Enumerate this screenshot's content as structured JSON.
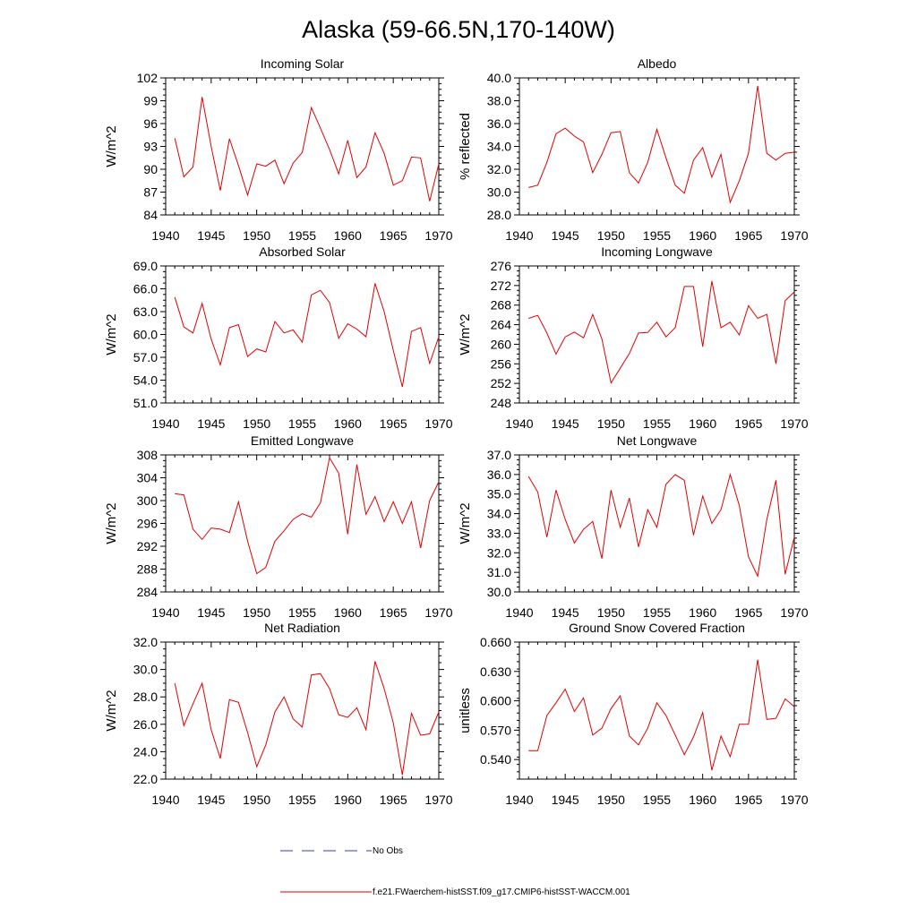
{
  "figure": {
    "title": "Alaska (59-66.5N,170-140W)",
    "legend": {
      "obs_label": "No Obs",
      "model_label": "f.e21.FWaerchem-histSST.f09_g17.CMIP6-histSST-WACCM.001",
      "obs_color": "#3b3bb0",
      "model_color": "#e00000"
    }
  },
  "chart_data": [
    {
      "type": "line",
      "title": "Incoming Solar",
      "ylabel": "W/m^2",
      "xlim": [
        1940,
        1970
      ],
      "ylim": [
        84,
        102
      ],
      "xticks": [
        1940,
        1945,
        1950,
        1955,
        1960,
        1965,
        1970
      ],
      "yticks": [
        "84",
        "87",
        "90",
        "93",
        "96",
        "99",
        "102"
      ],
      "x": [
        1941,
        1942,
        1943,
        1944,
        1945,
        1946,
        1947,
        1948,
        1949,
        1950,
        1951,
        1952,
        1953,
        1954,
        1955,
        1956,
        1957,
        1958,
        1959,
        1960,
        1961,
        1962,
        1963,
        1964,
        1965,
        1966,
        1967,
        1968,
        1969,
        1970
      ],
      "series": [
        {
          "name": "f.e21.FWaerchem-histSST.f09_g17.CMIP6-histSST-WACCM.001",
          "values": [
            94.1,
            89.0,
            90.3,
            99.5,
            93.0,
            87.2,
            94.0,
            90.5,
            86.6,
            90.7,
            90.4,
            91.2,
            88.1,
            90.8,
            92.2,
            98.1,
            95.4,
            92.6,
            89.4,
            93.8,
            88.9,
            90.3,
            94.8,
            92.1,
            87.9,
            88.5,
            91.6,
            91.5,
            85.8,
            90.7
          ]
        }
      ]
    },
    {
      "type": "line",
      "title": "Albedo",
      "ylabel": "% reflected",
      "xlim": [
        1940,
        1970
      ],
      "ylim": [
        28.0,
        40.0
      ],
      "xticks": [
        1940,
        1945,
        1950,
        1955,
        1960,
        1965,
        1970
      ],
      "yticks": [
        "28.0",
        "30.0",
        "32.0",
        "34.0",
        "36.0",
        "38.0",
        "40.0"
      ],
      "x": [
        1941,
        1942,
        1943,
        1944,
        1945,
        1946,
        1947,
        1948,
        1949,
        1950,
        1951,
        1952,
        1953,
        1954,
        1955,
        1956,
        1957,
        1958,
        1959,
        1960,
        1961,
        1962,
        1963,
        1964,
        1965,
        1966,
        1967,
        1968,
        1969,
        1970
      ],
      "series": [
        {
          "name": "f.e21.FWaerchem-histSST.f09_g17.CMIP6-histSST-WACCM.001",
          "values": [
            30.4,
            30.6,
            32.6,
            35.1,
            35.6,
            34.9,
            34.4,
            31.7,
            33.3,
            35.2,
            35.3,
            31.7,
            30.8,
            32.6,
            35.5,
            33.0,
            30.6,
            29.9,
            32.8,
            33.9,
            31.3,
            33.3,
            29.1,
            31.0,
            33.4,
            39.3,
            33.4,
            32.8,
            33.4,
            33.5
          ]
        }
      ]
    },
    {
      "type": "line",
      "title": "Absorbed Solar",
      "ylabel": "W/m^2",
      "xlim": [
        1940,
        1970
      ],
      "ylim": [
        51.0,
        69.0
      ],
      "xticks": [
        1940,
        1945,
        1950,
        1955,
        1960,
        1965,
        1970
      ],
      "yticks": [
        "51.0",
        "54.0",
        "57.0",
        "60.0",
        "63.0",
        "66.0",
        "69.0"
      ],
      "x": [
        1941,
        1942,
        1943,
        1944,
        1945,
        1946,
        1947,
        1948,
        1949,
        1950,
        1951,
        1952,
        1953,
        1954,
        1955,
        1956,
        1957,
        1958,
        1959,
        1960,
        1961,
        1962,
        1963,
        1964,
        1965,
        1966,
        1967,
        1968,
        1969,
        1970
      ],
      "series": [
        {
          "name": "f.e21.FWaerchem-histSST.f09_g17.CMIP6-histSST-WACCM.001",
          "values": [
            64.9,
            61.0,
            60.2,
            64.1,
            59.4,
            56.0,
            60.9,
            61.3,
            57.1,
            58.1,
            57.7,
            61.7,
            60.2,
            60.6,
            59.0,
            65.2,
            65.8,
            64.2,
            59.5,
            61.4,
            60.7,
            59.7,
            66.7,
            63.0,
            57.9,
            53.1,
            60.4,
            60.9,
            56.2,
            59.7
          ]
        }
      ]
    },
    {
      "type": "line",
      "title": "Incoming Longwave",
      "ylabel": "W/m^2",
      "xlim": [
        1940,
        1970
      ],
      "ylim": [
        248,
        276
      ],
      "xticks": [
        1940,
        1945,
        1950,
        1955,
        1960,
        1965,
        1970
      ],
      "yticks": [
        "248",
        "252",
        "256",
        "260",
        "264",
        "268",
        "272",
        "276"
      ],
      "x": [
        1941,
        1942,
        1943,
        1944,
        1945,
        1946,
        1947,
        1948,
        1949,
        1950,
        1951,
        1952,
        1953,
        1954,
        1955,
        1956,
        1957,
        1958,
        1959,
        1960,
        1961,
        1962,
        1963,
        1964,
        1965,
        1966,
        1967,
        1968,
        1969,
        1970
      ],
      "series": [
        {
          "name": "f.e21.FWaerchem-histSST.f09_g17.CMIP6-histSST-WACCM.001",
          "values": [
            265.3,
            265.9,
            262.3,
            258.0,
            261.5,
            262.5,
            261.3,
            266.1,
            261.1,
            252.1,
            255.1,
            258.1,
            262.3,
            262.4,
            264.5,
            261.5,
            263.4,
            271.8,
            271.8,
            259.5,
            272.9,
            263.4,
            264.5,
            261.9,
            267.9,
            265.3,
            266.1,
            256.0,
            268.9,
            270.7
          ]
        }
      ]
    },
    {
      "type": "line",
      "title": "Emitted Longwave",
      "ylabel": "W/m^2",
      "xlim": [
        1940,
        1970
      ],
      "ylim": [
        284,
        308
      ],
      "xticks": [
        1940,
        1945,
        1950,
        1955,
        1960,
        1965,
        1970
      ],
      "yticks": [
        "284",
        "288",
        "292",
        "296",
        "300",
        "304",
        "308"
      ],
      "x": [
        1941,
        1942,
        1943,
        1944,
        1945,
        1946,
        1947,
        1948,
        1949,
        1950,
        1951,
        1952,
        1953,
        1954,
        1955,
        1956,
        1957,
        1958,
        1959,
        1960,
        1961,
        1962,
        1963,
        1964,
        1965,
        1966,
        1967,
        1968,
        1969,
        1970
      ],
      "series": [
        {
          "name": "f.e21.FWaerchem-histSST.f09_g17.CMIP6-histSST-WACCM.001",
          "values": [
            301.2,
            301.0,
            295.0,
            293.2,
            295.2,
            295.0,
            294.4,
            299.8,
            292.9,
            287.2,
            288.3,
            292.9,
            294.7,
            296.7,
            297.7,
            297.1,
            299.6,
            307.5,
            304.8,
            294.1,
            306.3,
            297.6,
            300.7,
            296.3,
            299.8,
            296.0,
            299.8,
            291.7,
            300.0,
            303.3
          ]
        }
      ]
    },
    {
      "type": "line",
      "title": "Net Longwave",
      "ylabel": "W/m^2",
      "xlim": [
        1940,
        1970
      ],
      "ylim": [
        30.0,
        37.0
      ],
      "xticks": [
        1940,
        1945,
        1950,
        1955,
        1960,
        1965,
        1970
      ],
      "yticks": [
        "30.0",
        "31.0",
        "32.0",
        "33.0",
        "34.0",
        "35.0",
        "36.0",
        "37.0"
      ],
      "x": [
        1941,
        1942,
        1943,
        1944,
        1945,
        1946,
        1947,
        1948,
        1949,
        1950,
        1951,
        1952,
        1953,
        1954,
        1955,
        1956,
        1957,
        1958,
        1959,
        1960,
        1961,
        1962,
        1963,
        1964,
        1965,
        1966,
        1967,
        1968,
        1969,
        1970
      ],
      "series": [
        {
          "name": "f.e21.FWaerchem-histSST.f09_g17.CMIP6-histSST-WACCM.001",
          "values": [
            35.9,
            35.1,
            32.8,
            35.2,
            33.7,
            32.5,
            33.2,
            33.6,
            31.7,
            35.2,
            33.3,
            34.8,
            32.3,
            34.2,
            33.3,
            35.5,
            36.0,
            35.7,
            32.9,
            34.9,
            33.5,
            34.2,
            36.0,
            34.4,
            31.8,
            30.8,
            33.7,
            35.7,
            30.9,
            32.8
          ]
        }
      ]
    },
    {
      "type": "line",
      "title": "Net Radiation",
      "ylabel": "W/m^2",
      "xlim": [
        1940,
        1970
      ],
      "ylim": [
        22.0,
        32.0
      ],
      "xticks": [
        1940,
        1945,
        1950,
        1955,
        1960,
        1965,
        1970
      ],
      "yticks": [
        "22.0",
        "24.0",
        "26.0",
        "28.0",
        "30.0",
        "32.0"
      ],
      "x": [
        1941,
        1942,
        1943,
        1944,
        1945,
        1946,
        1947,
        1948,
        1949,
        1950,
        1951,
        1952,
        1953,
        1954,
        1955,
        1956,
        1957,
        1958,
        1959,
        1960,
        1961,
        1962,
        1963,
        1964,
        1965,
        1966,
        1967,
        1968,
        1969,
        1970
      ],
      "series": [
        {
          "name": "f.e21.FWaerchem-histSST.f09_g17.CMIP6-histSST-WACCM.001",
          "values": [
            29.0,
            25.9,
            27.5,
            29.0,
            25.6,
            23.5,
            27.8,
            27.6,
            25.4,
            22.9,
            24.5,
            26.9,
            28.0,
            26.4,
            25.8,
            29.6,
            29.7,
            28.6,
            26.7,
            26.5,
            27.2,
            25.6,
            30.6,
            28.6,
            26.1,
            22.3,
            26.8,
            25.2,
            25.3,
            26.9
          ]
        }
      ]
    },
    {
      "type": "line",
      "title": "Ground Snow Covered Fraction",
      "ylabel": "unitless",
      "xlim": [
        1940,
        1970
      ],
      "ylim": [
        0.52,
        0.66
      ],
      "xticks": [
        1940,
        1945,
        1950,
        1955,
        1960,
        1965,
        1970
      ],
      "yticks": [
        "0.540",
        "0.570",
        "0.600",
        "0.630",
        "0.660"
      ],
      "x": [
        1941,
        1942,
        1943,
        1944,
        1945,
        1946,
        1947,
        1948,
        1949,
        1950,
        1951,
        1952,
        1953,
        1954,
        1955,
        1956,
        1957,
        1958,
        1959,
        1960,
        1961,
        1962,
        1963,
        1964,
        1965,
        1966,
        1967,
        1968,
        1969,
        1970
      ],
      "series": [
        {
          "name": "f.e21.FWaerchem-histSST.f09_g17.CMIP6-histSST-WACCM.001",
          "values": [
            0.549,
            0.549,
            0.585,
            0.598,
            0.612,
            0.589,
            0.603,
            0.565,
            0.572,
            0.592,
            0.605,
            0.564,
            0.555,
            0.572,
            0.598,
            0.585,
            0.565,
            0.545,
            0.563,
            0.588,
            0.529,
            0.564,
            0.543,
            0.576,
            0.576,
            0.642,
            0.581,
            0.582,
            0.602,
            0.594
          ]
        }
      ]
    }
  ]
}
